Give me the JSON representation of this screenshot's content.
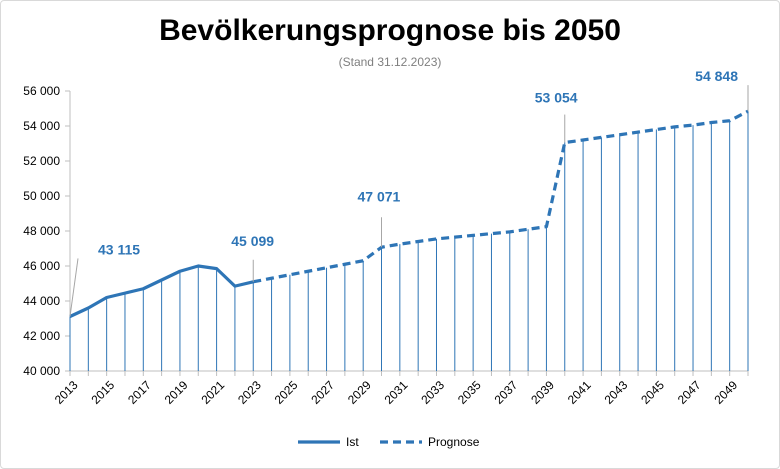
{
  "chart_data": {
    "type": "line",
    "title": "Bevölkerungsprognose bis 2050",
    "subtitle": "(Stand 31.12.2023)",
    "xlabel": "",
    "ylabel": "",
    "ylim": [
      40000,
      56000
    ],
    "yticks": [
      "40 000",
      "42 000",
      "44 000",
      "46 000",
      "48 000",
      "50 000",
      "52 000",
      "54 000",
      "56 000"
    ],
    "xlim": [
      2013,
      2050
    ],
    "xticks": [
      "2013",
      "2015",
      "2017",
      "2019",
      "2021",
      "2023",
      "2025",
      "2027",
      "2029",
      "2031",
      "2033",
      "2035",
      "2037",
      "2039",
      "2041",
      "2043",
      "2045",
      "2047",
      "2049"
    ],
    "color": "#2e75b6",
    "legend_position": "bottom",
    "series": [
      {
        "name": "Ist",
        "style": "solid",
        "x": [
          2013,
          2014,
          2015,
          2016,
          2017,
          2018,
          2019,
          2020,
          2021,
          2022,
          2023
        ],
        "values": [
          43115,
          43600,
          44200,
          44450,
          44700,
          45200,
          45700,
          46000,
          45850,
          44850,
          45099
        ]
      },
      {
        "name": "Prognose",
        "style": "dashed",
        "x": [
          2023,
          2024,
          2025,
          2026,
          2027,
          2028,
          2029,
          2030,
          2031,
          2032,
          2033,
          2034,
          2035,
          2036,
          2037,
          2038,
          2039,
          2040,
          2041,
          2042,
          2043,
          2044,
          2045,
          2046,
          2047,
          2048,
          2049,
          2050
        ],
        "values": [
          45099,
          45300,
          45500,
          45700,
          45900,
          46100,
          46300,
          47071,
          47250,
          47400,
          47550,
          47650,
          47750,
          47850,
          47950,
          48100,
          48250,
          53054,
          53200,
          53350,
          53500,
          53650,
          53800,
          53950,
          54050,
          54200,
          54300,
          54848
        ]
      }
    ],
    "annotations": [
      {
        "x": 2013,
        "value": 43115,
        "label": "43 115"
      },
      {
        "x": 2023,
        "value": 45099,
        "label": "45 099"
      },
      {
        "x": 2030,
        "value": 47071,
        "label": "47 071"
      },
      {
        "x": 2040,
        "value": 53054,
        "label": "53 054"
      },
      {
        "x": 2050,
        "value": 54848,
        "label": "54 848"
      }
    ]
  }
}
